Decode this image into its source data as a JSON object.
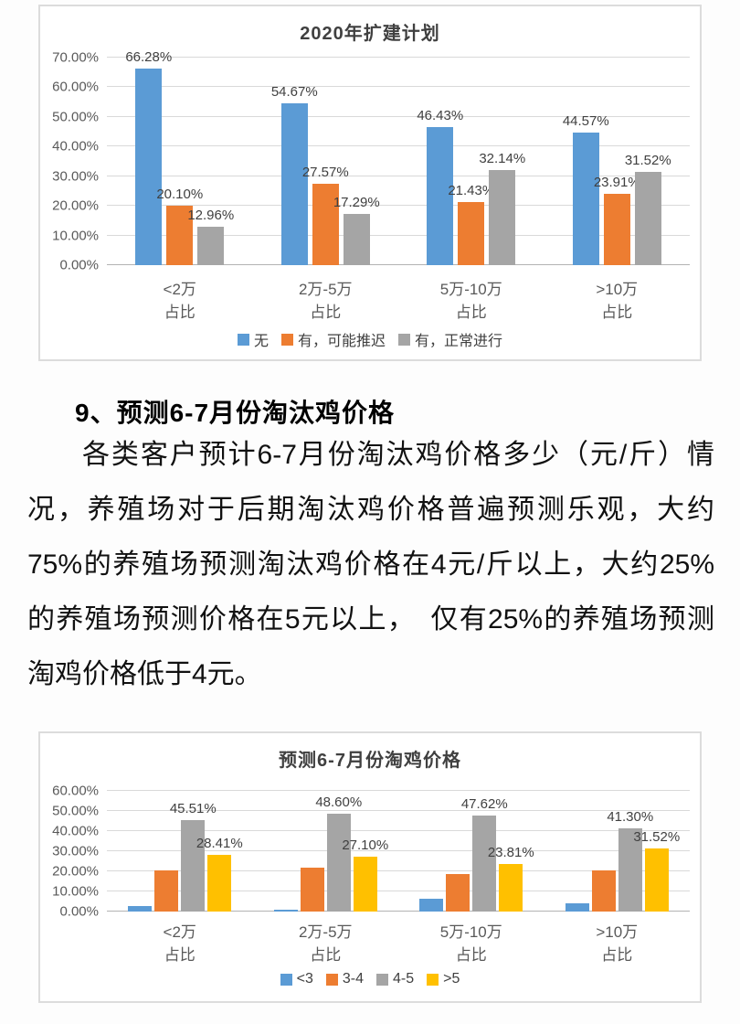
{
  "article": {
    "heading": "9、预测6-7月份淘汰鸡价格",
    "lines": [
      "各类客户预计6-7月份淘汰鸡价格多少（元/斤）情",
      "况，养殖场对于后期淘汰鸡价格普遍预测乐观，大约",
      "75%的养殖场预测淘汰鸡价格在4元/斤以上，大约25%",
      "的养殖场预测价格在5元以上，　仅有25%的养殖场预测",
      "淘鸡价格低于4元。"
    ]
  },
  "chart_data": [
    {
      "type": "bar",
      "title": "2020年扩建计划",
      "categories": [
        {
          "label": "<2万",
          "sublabel": "占比"
        },
        {
          "label": "2万-5万",
          "sublabel": "占比"
        },
        {
          "label": "5万-10万",
          "sublabel": "占比"
        },
        {
          "label": ">10万",
          "sublabel": "占比"
        }
      ],
      "series": [
        {
          "name": "无",
          "color": "#5B9BD5",
          "values": [
            66.28,
            54.67,
            46.43,
            44.57
          ],
          "labels": [
            "66.28%",
            "54.67%",
            "46.43%",
            "44.57%"
          ]
        },
        {
          "name": "有，可能推迟",
          "color": "#ED7D31",
          "values": [
            20.1,
            27.57,
            21.43,
            23.91
          ],
          "labels": [
            "20.10%",
            "27.57%",
            "21.43%",
            "23.91%"
          ]
        },
        {
          "name": "有，正常进行",
          "color": "#A5A5A5",
          "values": [
            12.96,
            17.29,
            32.14,
            31.52
          ],
          "labels": [
            "12.96%",
            "17.29%",
            "32.14%",
            "31.52%"
          ]
        }
      ],
      "ylim": [
        0,
        70
      ],
      "yticks": [
        "0.00%",
        "10.00%",
        "20.00%",
        "30.00%",
        "40.00%",
        "50.00%",
        "60.00%",
        "70.00%"
      ],
      "grid": true,
      "legend_position": "bottom"
    },
    {
      "type": "bar",
      "title": "预测6-7月份淘鸡价格",
      "categories": [
        {
          "label": "<2万",
          "sublabel": "占比"
        },
        {
          "label": "2万-5万",
          "sublabel": "占比"
        },
        {
          "label": "5万-10万",
          "sublabel": "占比"
        },
        {
          "label": ">10万",
          "sublabel": "占比"
        }
      ],
      "series": [
        {
          "name": "<3",
          "color": "#5B9BD5",
          "values": [
            2.8,
            0.7,
            6.5,
            4.2
          ],
          "labels": null
        },
        {
          "name": "3-4",
          "color": "#ED7D31",
          "values": [
            20.5,
            22.0,
            18.5,
            20.5
          ],
          "labels": null
        },
        {
          "name": "4-5",
          "color": "#A5A5A5",
          "values": [
            45.51,
            48.6,
            47.62,
            41.3
          ],
          "labels": [
            "45.51%",
            "48.60%",
            "47.62%",
            "41.30%"
          ]
        },
        {
          "name": ">5",
          "color": "#FFC000",
          "values": [
            28.41,
            27.1,
            23.81,
            31.52
          ],
          "labels": [
            "28.41%",
            "27.10%",
            "23.81%",
            "31.52%"
          ]
        }
      ],
      "ylim": [
        0,
        60
      ],
      "yticks": [
        "0.00%",
        "10.00%",
        "20.00%",
        "30.00%",
        "40.00%",
        "50.00%",
        "60.00%"
      ],
      "grid": true,
      "legend_position": "bottom"
    }
  ]
}
